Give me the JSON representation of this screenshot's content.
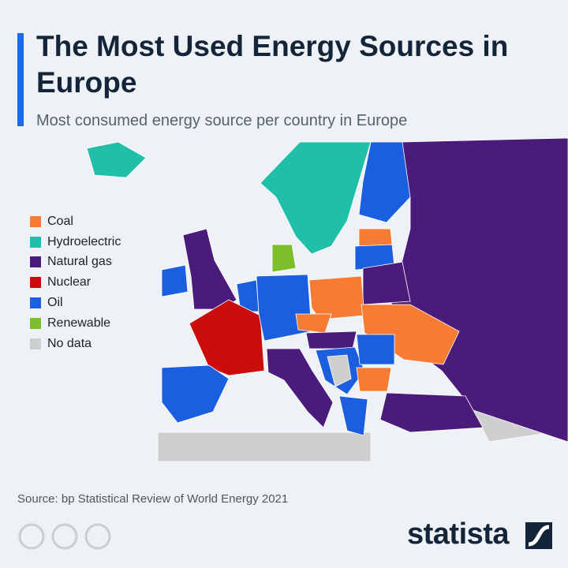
{
  "header": {
    "title": "The Most Used Energy Sources in Europe",
    "subtitle": "Most consumed energy source per country in Europe"
  },
  "legend": [
    {
      "label": "Coal",
      "color": "#f77b33"
    },
    {
      "label": "Hydroelectric",
      "color": "#1fbfa9"
    },
    {
      "label": "Natural gas",
      "color": "#4b1b7c"
    },
    {
      "label": "Nuclear",
      "color": "#cc0b0b"
    },
    {
      "label": "Oil",
      "color": "#1b5fe0"
    },
    {
      "label": "Renewable",
      "color": "#7dbf2a"
    },
    {
      "label": "No data",
      "color": "#cfcfcf"
    }
  ],
  "footer": {
    "source": "Source: bp Statistical Review of World Energy 2021",
    "brand": "statista"
  }
}
